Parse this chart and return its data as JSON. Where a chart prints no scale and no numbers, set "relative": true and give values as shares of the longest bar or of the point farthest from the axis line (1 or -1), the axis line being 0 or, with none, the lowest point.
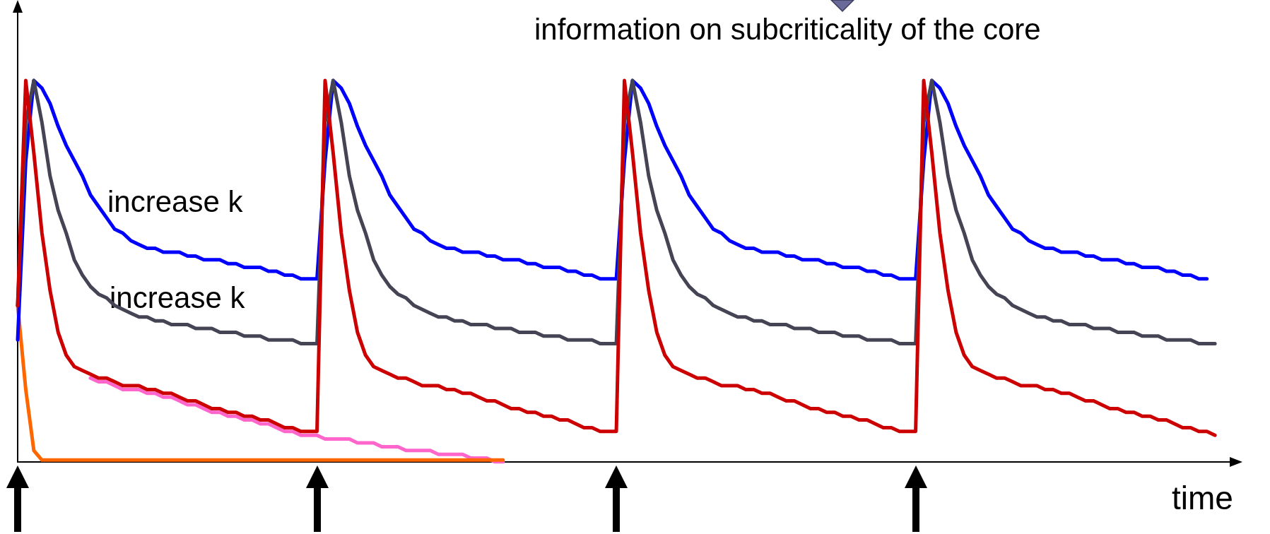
{
  "chart_data": {
    "type": "line",
    "relative": true,
    "title": "information on subcriticality of the core",
    "xlabel": "time",
    "annotations": [
      "increase k",
      "increase k"
    ],
    "categories": [
      null,
      null,
      null,
      null,
      null,
      null,
      null,
      null,
      null,
      null,
      null,
      null,
      null,
      null,
      null,
      null,
      null,
      null,
      null,
      null,
      null,
      null,
      null,
      null,
      null,
      null,
      null,
      null,
      null,
      null,
      null,
      null,
      null,
      null,
      null,
      null,
      null,
      null,
      null,
      null,
      null,
      null,
      null,
      null,
      null,
      null,
      null,
      null,
      null,
      null,
      null,
      null,
      null,
      null,
      null,
      null,
      null,
      null,
      null,
      null,
      null,
      null,
      null,
      null,
      null,
      null,
      null,
      null,
      null,
      null,
      null,
      null,
      null,
      null,
      null,
      null,
      null,
      null,
      null,
      null,
      null,
      null,
      null,
      null,
      null,
      null,
      null,
      null,
      null,
      null,
      null,
      null,
      null,
      null,
      null,
      null,
      null,
      null,
      null,
      null,
      null,
      null,
      null,
      null,
      null,
      null,
      null,
      null,
      null,
      null,
      null,
      null,
      null,
      null,
      null,
      null,
      null,
      null,
      null,
      null,
      null,
      null,
      null,
      null,
      null,
      null,
      null,
      null,
      null,
      null,
      null,
      null,
      null,
      null,
      null,
      null,
      null,
      null,
      null,
      null,
      null,
      null,
      null,
      null,
      null,
      null,
      null,
      null,
      null
    ],
    "grid": false,
    "tick_labels": false,
    "marker": "none",
    "line_style": "solid",
    "series": [
      {
        "color": "#ff66cc",
        "values": [
          null,
          null,
          null,
          null,
          null,
          null,
          null,
          null,
          null,
          0.22,
          0.21,
          0.21,
          0.2,
          0.19,
          0.19,
          0.19,
          0.18,
          0.18,
          0.17,
          0.17,
          0.16,
          0.15,
          0.15,
          0.14,
          0.13,
          0.13,
          0.12,
          0.12,
          0.11,
          0.11,
          0.1,
          0.1,
          0.09,
          0.08,
          0.08,
          0.07,
          0.07,
          0.07,
          0.06,
          0.06,
          0.06,
          0.06,
          0.05,
          0.05,
          0.05,
          0.04,
          0.04,
          0.04,
          0.03,
          0.03,
          0.03,
          0.03,
          0.02,
          0.02,
          0.02,
          0.02,
          0.01,
          0.01,
          0.01,
          0,
          0,
          null,
          null,
          null,
          null,
          null,
          null,
          null,
          null,
          null,
          null,
          null,
          null,
          null,
          null,
          null,
          null,
          null,
          null,
          null,
          null,
          null,
          null,
          null,
          null,
          null,
          null,
          null,
          null,
          null,
          null,
          null,
          null,
          null,
          null,
          null,
          null,
          null,
          null,
          null,
          null,
          null,
          null,
          null,
          null,
          null,
          null,
          null,
          null,
          null,
          null,
          null,
          null,
          null,
          null,
          null,
          null,
          null,
          null,
          null,
          null,
          null,
          null,
          null,
          null,
          null,
          null,
          null,
          null,
          null,
          null,
          null,
          null,
          null,
          null,
          null,
          null,
          null,
          null,
          null,
          null,
          null,
          null,
          null,
          null,
          null,
          null,
          null,
          null
        ]
      },
      {
        "color": "#ff6600",
        "values": [
          0.41,
          0.19,
          0.03,
          0.005,
          0.005,
          0.005,
          0.005,
          0.005,
          0.005,
          0.005,
          0.005,
          0.005,
          0.005,
          0.005,
          0.005,
          0.005,
          0.005,
          0.005,
          0.005,
          0.005,
          0.005,
          0.005,
          0.005,
          0.005,
          0.005,
          0.005,
          0.005,
          0.005,
          0.005,
          0.005,
          0.005,
          0.005,
          0.005,
          0.005,
          0.005,
          0.005,
          0.005,
          0.005,
          0.005,
          0.005,
          0.005,
          0.005,
          0.005,
          0.005,
          0.005,
          0.005,
          0.005,
          0.005,
          0.005,
          0.005,
          0.005,
          0.005,
          0.005,
          0.005,
          0.005,
          0.005,
          0.005,
          0.005,
          0.005,
          0.005,
          0.005,
          null,
          null,
          null,
          null,
          null,
          null,
          null,
          null,
          null,
          null,
          null,
          null,
          null,
          null,
          null,
          null,
          null,
          null,
          null,
          null,
          null,
          null,
          null,
          null,
          null,
          null,
          null,
          null,
          null,
          null,
          null,
          null,
          null,
          null,
          null,
          null,
          null,
          null,
          null,
          null,
          null,
          null,
          null,
          null,
          null,
          null,
          null,
          null,
          null,
          null,
          null,
          null,
          null,
          null,
          null,
          null,
          null,
          null,
          null,
          null,
          null,
          null,
          null,
          null,
          null,
          null,
          null,
          null,
          null,
          null,
          null,
          null,
          null,
          null,
          null,
          null,
          null,
          null,
          null,
          null,
          null,
          null,
          null,
          null,
          null,
          null,
          null,
          null
        ]
      },
      {
        "color": "#0000ff",
        "values": [
          0.32,
          0.79,
          1,
          0.98,
          0.94,
          0.88,
          0.83,
          0.79,
          0.75,
          0.7,
          0.67,
          0.64,
          0.61,
          0.6,
          0.58,
          0.57,
          0.56,
          0.56,
          0.55,
          0.55,
          0.55,
          0.54,
          0.54,
          0.53,
          0.53,
          0.53,
          0.52,
          0.52,
          0.51,
          0.51,
          0.51,
          0.5,
          0.5,
          0.49,
          0.49,
          0.48,
          0.48,
          0.48,
          0.79,
          1,
          0.98,
          0.94,
          0.88,
          0.83,
          0.79,
          0.75,
          0.7,
          0.67,
          0.64,
          0.61,
          0.6,
          0.58,
          0.57,
          0.56,
          0.56,
          0.55,
          0.55,
          0.55,
          0.54,
          0.54,
          0.53,
          0.53,
          0.53,
          0.52,
          0.52,
          0.51,
          0.51,
          0.51,
          0.5,
          0.5,
          0.49,
          0.49,
          0.48,
          0.48,
          0.48,
          0.79,
          1,
          0.98,
          0.94,
          0.88,
          0.83,
          0.79,
          0.75,
          0.7,
          0.67,
          0.64,
          0.61,
          0.6,
          0.58,
          0.57,
          0.56,
          0.56,
          0.55,
          0.55,
          0.55,
          0.54,
          0.54,
          0.53,
          0.53,
          0.53,
          0.52,
          0.52,
          0.51,
          0.51,
          0.51,
          0.5,
          0.5,
          0.49,
          0.49,
          0.48,
          0.48,
          0.48,
          0.79,
          1,
          0.98,
          0.94,
          0.88,
          0.83,
          0.79,
          0.75,
          0.7,
          0.67,
          0.64,
          0.61,
          0.6,
          0.58,
          0.57,
          0.56,
          0.56,
          0.55,
          0.55,
          0.55,
          0.54,
          0.54,
          0.53,
          0.53,
          0.53,
          0.52,
          0.52,
          0.51,
          0.51,
          0.51,
          0.5,
          0.5,
          0.49,
          0.49,
          0.48,
          0.48,
          null
        ]
      },
      {
        "color": "#444455",
        "values": [
          0.41,
          0.89,
          1,
          0.89,
          0.75,
          0.66,
          0.6,
          0.53,
          0.49,
          0.46,
          0.44,
          0.43,
          0.41,
          0.4,
          0.39,
          0.38,
          0.38,
          0.37,
          0.37,
          0.36,
          0.36,
          0.36,
          0.35,
          0.35,
          0.35,
          0.34,
          0.34,
          0.34,
          0.33,
          0.33,
          0.33,
          0.32,
          0.32,
          0.32,
          0.32,
          0.31,
          0.31,
          0.31,
          0.89,
          1,
          0.89,
          0.75,
          0.66,
          0.6,
          0.53,
          0.49,
          0.46,
          0.44,
          0.43,
          0.41,
          0.4,
          0.39,
          0.38,
          0.38,
          0.37,
          0.37,
          0.36,
          0.36,
          0.36,
          0.35,
          0.35,
          0.35,
          0.34,
          0.34,
          0.34,
          0.33,
          0.33,
          0.33,
          0.32,
          0.32,
          0.32,
          0.32,
          0.31,
          0.31,
          0.31,
          0.89,
          1,
          0.89,
          0.75,
          0.66,
          0.6,
          0.53,
          0.49,
          0.46,
          0.44,
          0.43,
          0.41,
          0.4,
          0.39,
          0.38,
          0.38,
          0.37,
          0.37,
          0.36,
          0.36,
          0.36,
          0.35,
          0.35,
          0.35,
          0.34,
          0.34,
          0.34,
          0.33,
          0.33,
          0.33,
          0.32,
          0.32,
          0.32,
          0.32,
          0.31,
          0.31,
          0.31,
          0.89,
          1,
          0.89,
          0.75,
          0.66,
          0.6,
          0.53,
          0.49,
          0.46,
          0.44,
          0.43,
          0.41,
          0.4,
          0.39,
          0.38,
          0.38,
          0.37,
          0.37,
          0.36,
          0.36,
          0.36,
          0.35,
          0.35,
          0.35,
          0.34,
          0.34,
          0.34,
          0.33,
          0.33,
          0.33,
          0.32,
          0.32,
          0.32,
          0.32,
          0.31,
          0.31,
          0.31
        ]
      },
      {
        "color": "#cc0000",
        "values": [
          0.41,
          1,
          0.81,
          0.6,
          0.45,
          0.34,
          0.28,
          0.25,
          0.24,
          0.23,
          0.22,
          0.22,
          0.21,
          0.2,
          0.2,
          0.2,
          0.19,
          0.19,
          0.18,
          0.18,
          0.17,
          0.16,
          0.16,
          0.15,
          0.14,
          0.14,
          0.13,
          0.13,
          0.12,
          0.12,
          0.11,
          0.11,
          0.1,
          0.09,
          0.09,
          0.08,
          0.08,
          0.08,
          1,
          0.81,
          0.6,
          0.45,
          0.34,
          0.28,
          0.25,
          0.24,
          0.23,
          0.22,
          0.22,
          0.21,
          0.2,
          0.2,
          0.2,
          0.19,
          0.19,
          0.18,
          0.18,
          0.17,
          0.16,
          0.16,
          0.15,
          0.14,
          0.14,
          0.13,
          0.13,
          0.12,
          0.12,
          0.11,
          0.11,
          0.1,
          0.09,
          0.09,
          0.08,
          0.08,
          0.08,
          1,
          0.81,
          0.6,
          0.45,
          0.34,
          0.28,
          0.25,
          0.24,
          0.23,
          0.22,
          0.22,
          0.21,
          0.2,
          0.2,
          0.2,
          0.19,
          0.19,
          0.18,
          0.18,
          0.17,
          0.16,
          0.16,
          0.15,
          0.14,
          0.14,
          0.13,
          0.13,
          0.12,
          0.12,
          0.11,
          0.11,
          0.1,
          0.09,
          0.09,
          0.08,
          0.08,
          0.08,
          1,
          0.81,
          0.6,
          0.45,
          0.34,
          0.28,
          0.25,
          0.24,
          0.23,
          0.22,
          0.22,
          0.21,
          0.2,
          0.2,
          0.2,
          0.19,
          0.19,
          0.18,
          0.18,
          0.17,
          0.16,
          0.16,
          0.15,
          0.14,
          0.14,
          0.13,
          0.13,
          0.12,
          0.12,
          0.11,
          0.11,
          0.1,
          0.09,
          0.09,
          0.08,
          0.08,
          0.07
        ]
      }
    ]
  }
}
